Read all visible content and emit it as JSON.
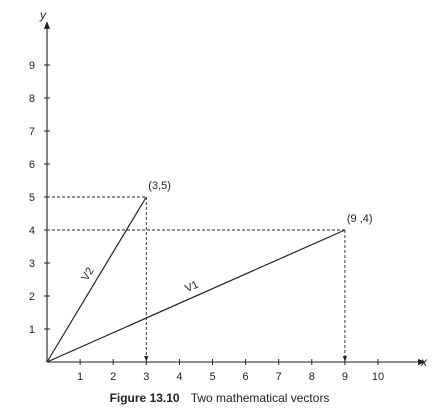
{
  "chart_data": {
    "type": "line",
    "x_axis": {
      "label": "x",
      "ticks": [
        1,
        2,
        3,
        4,
        5,
        6,
        7,
        8,
        9,
        10
      ],
      "range": [
        0,
        11
      ]
    },
    "y_axis": {
      "label": "y",
      "ticks": [
        1,
        2,
        3,
        4,
        5,
        6,
        7,
        8,
        9
      ],
      "range": [
        0,
        10
      ]
    },
    "vectors": [
      {
        "name": "V1",
        "from": [
          0,
          0
        ],
        "to": [
          9,
          4
        ],
        "point_label": "(9 ,4)"
      },
      {
        "name": "V2",
        "from": [
          0,
          0
        ],
        "to": [
          3,
          5
        ],
        "point_label": "(3,5)"
      }
    ],
    "grid": false
  },
  "caption": {
    "label": "Figure 13.10",
    "text": "Two mathematical vectors"
  }
}
